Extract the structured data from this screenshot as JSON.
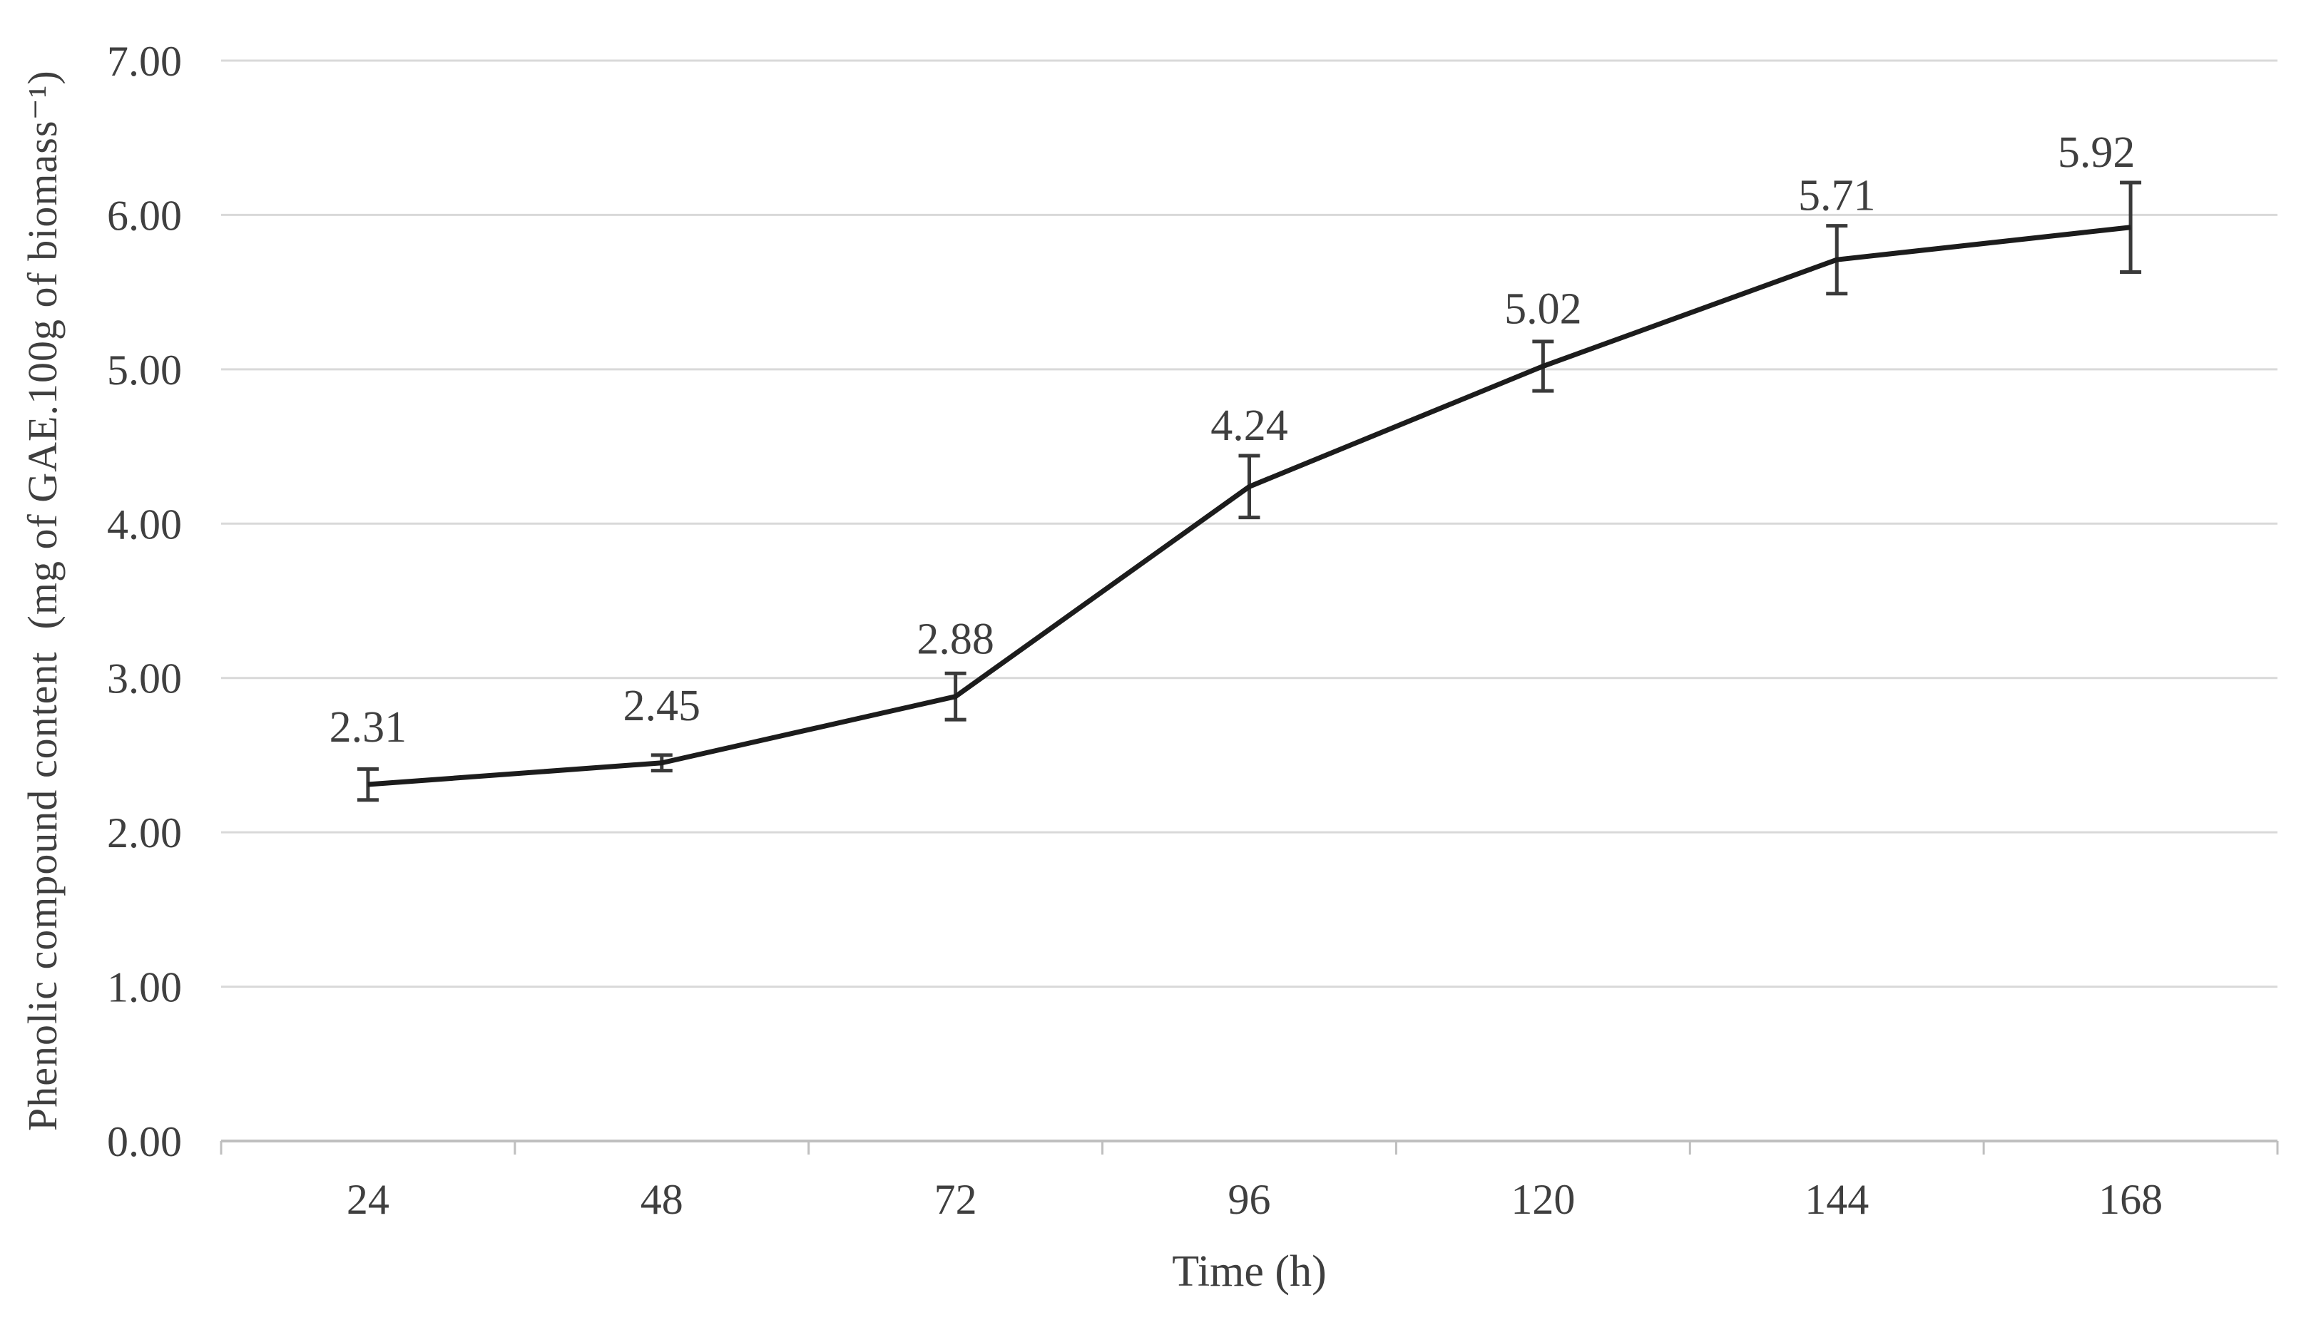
{
  "chart_data": {
    "type": "line",
    "title": "",
    "xlabel": "Time (h)",
    "ylabel": "Phenolic compound content  (mg of GAE.100g of biomass⁻¹)",
    "categories": [
      "24",
      "48",
      "72",
      "96",
      "120",
      "144",
      "168"
    ],
    "series": [
      {
        "name": "Phenolic compound content",
        "values": [
          2.31,
          2.45,
          2.88,
          4.24,
          5.02,
          5.71,
          5.92
        ],
        "error_bars": [
          0.1,
          0.05,
          0.15,
          0.2,
          0.16,
          0.22,
          0.29
        ],
        "point_labels": [
          "2.31",
          "2.45",
          "2.88",
          "4.24",
          "5.02",
          "5.71",
          "5.92"
        ],
        "label_dx": [
          0,
          0,
          0,
          0,
          0,
          0,
          -48
        ]
      }
    ],
    "ylim": [
      0,
      7
    ],
    "ytick_step": 1,
    "ytick_labels": [
      "0.00",
      "1.00",
      "2.00",
      "3.00",
      "4.00",
      "5.00",
      "6.00",
      "7.00"
    ],
    "grid": "horizontal-only",
    "legend": "none",
    "colors": {
      "line": "#1c1c1c",
      "error_bar": "#3a3a3a",
      "gridline": "#d9d9d9",
      "axis_line": "#bfbfbf",
      "text": "#3f3f3f",
      "background": "#ffffff"
    }
  }
}
